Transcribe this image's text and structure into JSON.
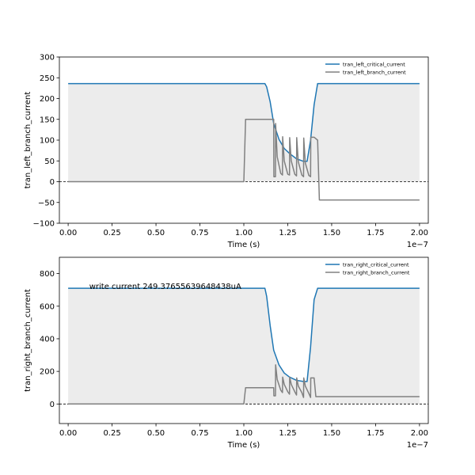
{
  "colors": {
    "critical": "#1f77b4",
    "branch": "#808080",
    "fill": "#ececec",
    "zero_line": "#000000"
  },
  "chart_data": [
    {
      "type": "line",
      "name": "top",
      "xlabel": "Time (s)",
      "ylabel": "tran_left_branch_current",
      "x_multiplier": "1e−7",
      "xlim": [
        -0.05,
        2.05
      ],
      "ylim": [
        -100,
        300
      ],
      "xticks": [
        0.0,
        0.25,
        0.5,
        0.75,
        1.0,
        1.25,
        1.5,
        1.75,
        2.0
      ],
      "xtick_labels": [
        "0.00",
        "0.25",
        "0.50",
        "0.75",
        "1.00",
        "1.25",
        "1.50",
        "1.75",
        "2.00"
      ],
      "yticks": [
        -100,
        -50,
        0,
        50,
        100,
        150,
        200,
        250,
        300
      ],
      "ytick_labels": [
        "−100",
        "−50",
        "0",
        "50",
        "100",
        "150",
        "200",
        "250",
        "300"
      ],
      "legend_position": "top-right",
      "zero_line": true,
      "annotation": "",
      "series": [
        {
          "name": "tran_left_critical_current",
          "x": [
            0.0,
            1.12,
            1.13,
            1.15,
            1.17,
            1.2,
            1.23,
            1.26,
            1.3,
            1.34,
            1.36,
            1.38,
            1.4,
            1.42,
            1.44,
            2.0
          ],
          "y": [
            236,
            236,
            228,
            192,
            140,
            102,
            80,
            68,
            55,
            49,
            49,
            100,
            185,
            236,
            236,
            236
          ]
        },
        {
          "name": "tran_left_branch_current",
          "x": [
            0.0,
            1.0,
            1.01,
            1.17,
            1.171,
            1.18,
            1.181,
            1.19,
            1.21,
            1.22,
            1.221,
            1.23,
            1.25,
            1.26,
            1.261,
            1.27,
            1.29,
            1.3,
            1.301,
            1.31,
            1.33,
            1.34,
            1.341,
            1.35,
            1.37,
            1.38,
            1.381,
            1.4,
            1.42,
            1.43,
            2.0
          ],
          "y": [
            0,
            0,
            150,
            150,
            12,
            12,
            140,
            60,
            20,
            16,
            108,
            50,
            18,
            16,
            106,
            50,
            18,
            14,
            106,
            48,
            16,
            12,
            105,
            45,
            15,
            12,
            107,
            107,
            100,
            -44,
            -44
          ]
        }
      ]
    },
    {
      "type": "line",
      "name": "bottom",
      "xlabel": "Time (s)",
      "ylabel": "tran_right_branch_current",
      "x_multiplier": "1e−7",
      "xlim": [
        -0.05,
        2.05
      ],
      "ylim": [
        -120,
        900
      ],
      "xticks": [
        0.0,
        0.25,
        0.5,
        0.75,
        1.0,
        1.25,
        1.5,
        1.75,
        2.0
      ],
      "xtick_labels": [
        "0.00",
        "0.25",
        "0.50",
        "0.75",
        "1.00",
        "1.25",
        "1.50",
        "1.75",
        "2.00"
      ],
      "yticks": [
        0,
        200,
        400,
        600,
        800
      ],
      "ytick_labels": [
        "0",
        "200",
        "400",
        "600",
        "800"
      ],
      "legend_position": "top-right",
      "zero_line": true,
      "annotation": "write current 249.37655639648438uA",
      "annotation_x": 0.12,
      "annotation_y": 720,
      "series": [
        {
          "name": "tran_right_critical_current",
          "x": [
            0.0,
            1.12,
            1.13,
            1.15,
            1.17,
            1.2,
            1.23,
            1.26,
            1.3,
            1.34,
            1.36,
            1.38,
            1.4,
            1.42,
            1.44,
            2.0
          ],
          "y": [
            710,
            710,
            660,
            480,
            330,
            240,
            190,
            165,
            145,
            138,
            138,
            350,
            640,
            710,
            710,
            710
          ]
        },
        {
          "name": "tran_right_branch_current",
          "x": [
            0.0,
            1.0,
            1.01,
            1.17,
            1.171,
            1.18,
            1.181,
            1.19,
            1.21,
            1.22,
            1.221,
            1.23,
            1.25,
            1.26,
            1.261,
            1.27,
            1.29,
            1.3,
            1.301,
            1.31,
            1.33,
            1.34,
            1.341,
            1.35,
            1.37,
            1.38,
            1.381,
            1.4,
            1.41,
            2.0
          ],
          "y": [
            0,
            0,
            100,
            100,
            50,
            50,
            240,
            150,
            85,
            70,
            165,
            120,
            75,
            60,
            165,
            120,
            75,
            55,
            160,
            110,
            70,
            40,
            160,
            110,
            65,
            40,
            160,
            160,
            45,
            45
          ]
        }
      ]
    }
  ]
}
